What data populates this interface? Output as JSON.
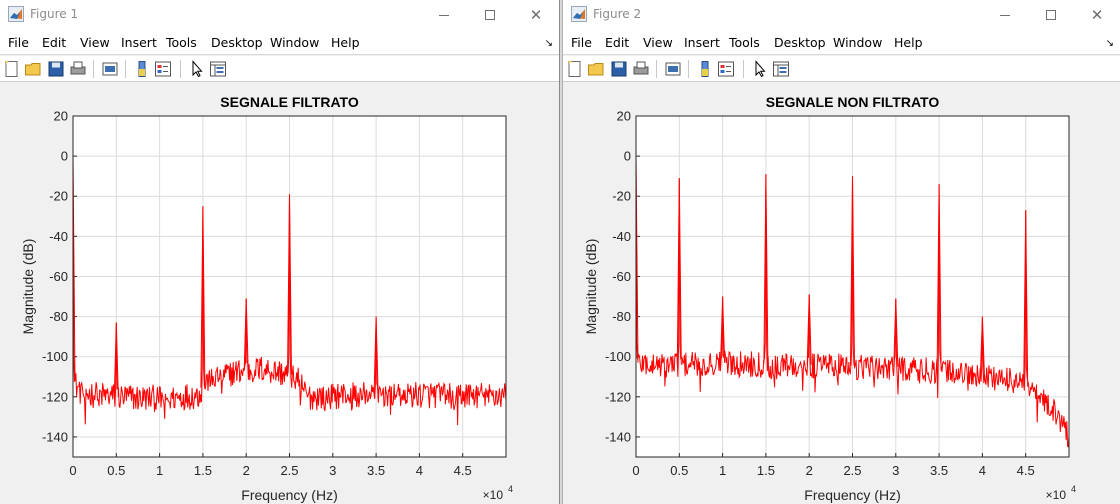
{
  "windows": [
    {
      "title": "Figure 1",
      "menu": [
        "File",
        "Edit",
        "View",
        "Insert",
        "Tools",
        "Desktop",
        "Window",
        "Help"
      ],
      "chart_data": {
        "type": "line",
        "title": "SEGNALE FILTRATO",
        "xlabel": "Frequency (Hz)",
        "ylabel": "Magnitude (dB)",
        "x_exponent_label": "×10",
        "x_exponent": "4",
        "xlim": [
          0,
          50000
        ],
        "ylim": [
          -150,
          20
        ],
        "xticks": [
          0,
          5000,
          10000,
          15000,
          20000,
          25000,
          30000,
          35000,
          40000,
          45000
        ],
        "xticklabels": [
          "0",
          "0.5",
          "1",
          "1.5",
          "2",
          "2.5",
          "3",
          "3.5",
          "4",
          "4.5"
        ],
        "yticks": [
          20,
          0,
          -20,
          -40,
          -60,
          -80,
          -100,
          -120,
          -140
        ],
        "yticklabels": [
          "20",
          "0",
          "-20",
          "-40",
          "-60",
          "-80",
          "-100",
          "-120",
          "-140"
        ],
        "grid": true,
        "color": "#ff0000",
        "baseline": [
          [
            0,
            -112
          ],
          [
            1000,
            -118
          ],
          [
            5000,
            -120
          ],
          [
            10000,
            -121
          ],
          [
            14500,
            -119
          ],
          [
            15500,
            -112
          ],
          [
            18000,
            -108
          ],
          [
            22000,
            -106
          ],
          [
            26000,
            -110
          ],
          [
            27000,
            -120
          ],
          [
            35000,
            -118
          ],
          [
            42000,
            -119
          ],
          [
            50000,
            -119
          ]
        ],
        "peaks": [
          [
            0,
            0
          ],
          [
            5000,
            -83
          ],
          [
            15000,
            -25
          ],
          [
            20000,
            -71
          ],
          [
            25000,
            -19
          ],
          [
            35000,
            -80
          ]
        ]
      }
    },
    {
      "title": "Figure 2",
      "menu": [
        "File",
        "Edit",
        "View",
        "Insert",
        "Tools",
        "Desktop",
        "Window",
        "Help"
      ],
      "chart_data": {
        "type": "line",
        "title": "SEGNALE NON FILTRATO",
        "xlabel": "Frequency (Hz)",
        "ylabel": "Magnitude (dB)",
        "x_exponent_label": "×10",
        "x_exponent": "4",
        "xlim": [
          0,
          50000
        ],
        "ylim": [
          -150,
          20
        ],
        "xticks": [
          0,
          5000,
          10000,
          15000,
          20000,
          25000,
          30000,
          35000,
          40000,
          45000
        ],
        "xticklabels": [
          "0",
          "0.5",
          "1",
          "1.5",
          "2",
          "2.5",
          "3",
          "3.5",
          "4",
          "4.5"
        ],
        "yticks": [
          20,
          0,
          -20,
          -40,
          -60,
          -80,
          -100,
          -120,
          -140
        ],
        "yticklabels": [
          "20",
          "0",
          "-20",
          "-40",
          "-60",
          "-80",
          "-100",
          "-120",
          "-140"
        ],
        "grid": true,
        "color": "#ff0000",
        "baseline": [
          [
            0,
            -103
          ],
          [
            5000,
            -104
          ],
          [
            10000,
            -103
          ],
          [
            20000,
            -104
          ],
          [
            30000,
            -105
          ],
          [
            38000,
            -108
          ],
          [
            44000,
            -112
          ],
          [
            46000,
            -118
          ],
          [
            48000,
            -125
          ],
          [
            50000,
            -140
          ]
        ],
        "peaks": [
          [
            0,
            0
          ],
          [
            5000,
            -11
          ],
          [
            10000,
            -70
          ],
          [
            15000,
            -9
          ],
          [
            20000,
            -69
          ],
          [
            25000,
            -10
          ],
          [
            30000,
            -71
          ],
          [
            35000,
            -14
          ],
          [
            40000,
            -80
          ],
          [
            45000,
            -27
          ]
        ]
      }
    }
  ]
}
